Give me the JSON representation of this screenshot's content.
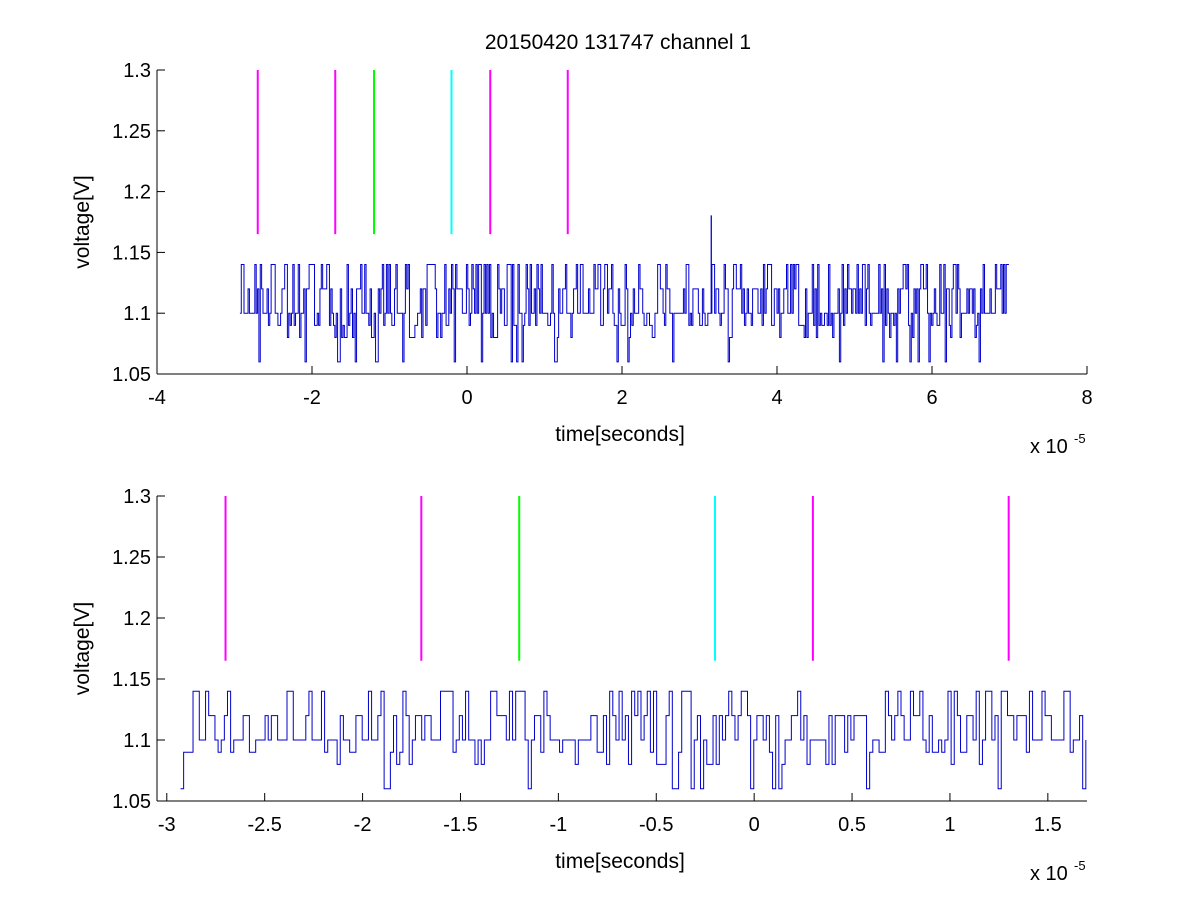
{
  "figure": {
    "title": "20150420 131747 channel 1",
    "colors": {
      "signal": "#0000cc",
      "magenta_marker": "#ff00ff",
      "green_marker": "#00ff00",
      "cyan_marker": "#00ffff",
      "axes": "#000000"
    }
  },
  "chart_data": [
    {
      "type": "line",
      "title": "20150420 131747 channel 1",
      "xlabel": "time[seconds]",
      "ylabel": "voltage[V]",
      "x_exponent_label": "x 10",
      "x_exponent": "-5",
      "xlim": [
        -4,
        8
      ],
      "ylim": [
        1.05,
        1.3
      ],
      "xticks": [
        -4,
        -2,
        0,
        2,
        4,
        6,
        8
      ],
      "xtick_labels": [
        "-4",
        "-2",
        "0",
        "2",
        "4",
        "6",
        "8"
      ],
      "yticks": [
        1.05,
        1.1,
        1.15,
        1.2,
        1.25,
        1.3
      ],
      "ytick_labels": [
        "1.05",
        "1.1",
        "1.15",
        "1.2",
        "1.25",
        "1.3"
      ],
      "grid": false,
      "signal": {
        "name": "voltage trace",
        "x_range": [
          -2.93,
          7.0
        ],
        "baseline": 1.1,
        "levels": [
          1.06,
          1.08,
          1.1,
          1.12,
          1.14
        ],
        "spike": {
          "x": 3.15,
          "y": 1.18
        }
      },
      "markers": [
        {
          "x": -2.7,
          "y_range": [
            1.165,
            1.3
          ],
          "color": "magenta"
        },
        {
          "x": -1.7,
          "y_range": [
            1.165,
            1.3
          ],
          "color": "magenta"
        },
        {
          "x": -1.2,
          "y_range": [
            1.165,
            1.3
          ],
          "color": "green"
        },
        {
          "x": -0.2,
          "y_range": [
            1.165,
            1.3
          ],
          "color": "cyan"
        },
        {
          "x": 0.3,
          "y_range": [
            1.165,
            1.3
          ],
          "color": "magenta"
        },
        {
          "x": 1.3,
          "y_range": [
            1.165,
            1.3
          ],
          "color": "magenta"
        }
      ]
    },
    {
      "type": "line",
      "title": "",
      "xlabel": "time[seconds]",
      "ylabel": "voltage[V]",
      "x_exponent_label": "x 10",
      "x_exponent": "-5",
      "xlim": [
        -3.05,
        1.7
      ],
      "ylim": [
        1.05,
        1.3
      ],
      "xticks": [
        -3,
        -2.5,
        -2,
        -1.5,
        -1,
        -0.5,
        0,
        0.5,
        1,
        1.5
      ],
      "xtick_labels": [
        "-3",
        "-2.5",
        "-2",
        "-1.5",
        "-1",
        "-0.5",
        "0",
        "0.5",
        "1",
        "1.5"
      ],
      "yticks": [
        1.05,
        1.1,
        1.15,
        1.2,
        1.25,
        1.3
      ],
      "ytick_labels": [
        "1.05",
        "1.1",
        "1.15",
        "1.2",
        "1.25",
        "1.3"
      ],
      "grid": false,
      "signal": {
        "name": "voltage trace",
        "x_range": [
          -2.93,
          1.7
        ],
        "baseline": 1.1,
        "levels": [
          1.06,
          1.08,
          1.1,
          1.12,
          1.14
        ]
      },
      "markers": [
        {
          "x": -2.7,
          "y_range": [
            1.165,
            1.3
          ],
          "color": "magenta"
        },
        {
          "x": -1.7,
          "y_range": [
            1.165,
            1.3
          ],
          "color": "magenta"
        },
        {
          "x": -1.2,
          "y_range": [
            1.165,
            1.3
          ],
          "color": "green"
        },
        {
          "x": -0.2,
          "y_range": [
            1.165,
            1.3
          ],
          "color": "cyan"
        },
        {
          "x": 0.3,
          "y_range": [
            1.165,
            1.3
          ],
          "color": "magenta"
        },
        {
          "x": 1.3,
          "y_range": [
            1.165,
            1.3
          ],
          "color": "magenta"
        }
      ]
    }
  ]
}
